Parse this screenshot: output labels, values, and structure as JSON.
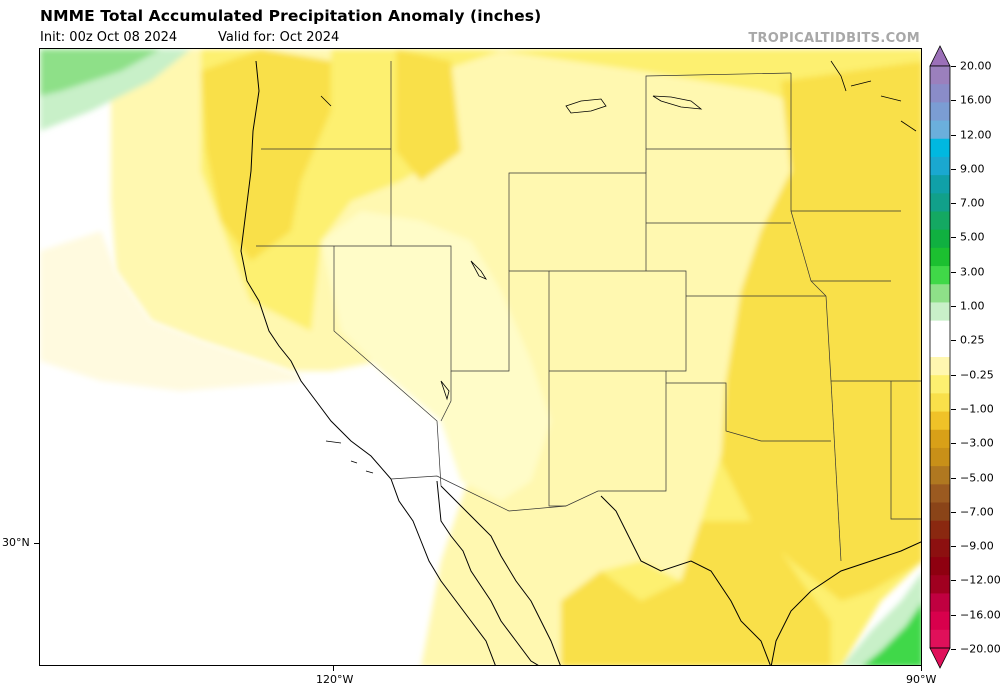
{
  "header": {
    "title": "NMME Total Accumulated Precipitation Anomaly (inches)",
    "init": "Init: 00z Oct 08 2024",
    "valid": "Valid for: Oct 2024",
    "source": "TROPICALTIDBITS.COM"
  },
  "map": {
    "lon_labels": [
      "120°W",
      "90°W"
    ],
    "lat_labels": [
      "30°N"
    ]
  },
  "colorbar": {
    "labels": [
      "20.00",
      "16.00",
      "12.00",
      "9.00",
      "7.00",
      "5.00",
      "3.00",
      "1.00",
      "0.25",
      "−0.25",
      "−1.00",
      "−3.00",
      "−5.00",
      "−7.00",
      "−9.00",
      "−12.00",
      "−16.00",
      "−20.00"
    ],
    "colors_top_to_bottom": [
      "#9b80bd",
      "#8a8cc8",
      "#7b9dd3",
      "#6bafdc",
      "#00b8e0",
      "#1aa8d0",
      "#10a0a8",
      "#11a08a",
      "#14a862",
      "#10b040",
      "#1cc030",
      "#40d848",
      "#8ee088",
      "#c8f0c8",
      "#ffffff",
      "#ffffff",
      "#fff7b0",
      "#fdf070",
      "#f9e04a",
      "#f0c228",
      "#d8a018",
      "#c89018",
      "#b07820",
      "#9b5a20",
      "#8a4418",
      "#8a2810",
      "#8c1010",
      "#8e0010",
      "#a00020",
      "#c00040",
      "#d8004c",
      "#e0105a"
    ]
  }
}
